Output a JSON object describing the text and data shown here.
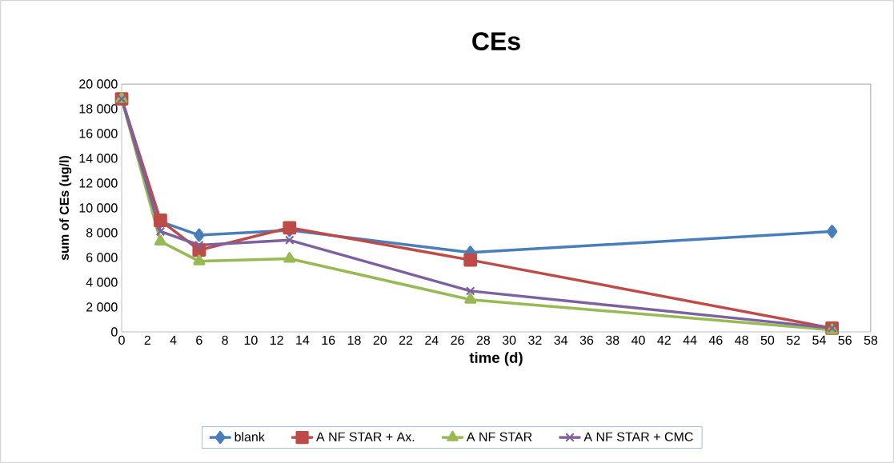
{
  "chart_data": {
    "type": "line",
    "title": "CEs",
    "xlabel": "time (d)",
    "ylabel": "sum of CEs (ug/l)",
    "x": [
      0,
      3,
      6,
      13,
      27,
      55
    ],
    "series": [
      {
        "name": "blank",
        "color": "#4a7ebb",
        "marker": "diamond",
        "values": [
          18800,
          8900,
          7800,
          8200,
          6400,
          8100
        ]
      },
      {
        "name": "A NF STAR + Ax.",
        "color": "#be4b48",
        "marker": "square",
        "values": [
          18800,
          9000,
          6600,
          8400,
          5800,
          300
        ]
      },
      {
        "name": "A NF STAR",
        "color": "#98b954",
        "marker": "triangle",
        "values": [
          18800,
          7300,
          5700,
          5900,
          2600,
          150
        ]
      },
      {
        "name": "A NF STAR + CMC",
        "color": "#7d60a0",
        "marker": "cross",
        "values": [
          18800,
          8100,
          7000,
          7400,
          3300,
          300
        ]
      }
    ],
    "xlim": [
      0,
      58
    ],
    "xticks": [
      0,
      2,
      4,
      6,
      8,
      10,
      12,
      14,
      16,
      18,
      20,
      22,
      24,
      26,
      28,
      30,
      32,
      34,
      36,
      38,
      40,
      42,
      44,
      46,
      48,
      50,
      52,
      54,
      56,
      58
    ],
    "ylim": [
      0,
      20000
    ],
    "yticks": [
      {
        "value": 0,
        "label": "0"
      },
      {
        "value": 2000,
        "label": "2 000"
      },
      {
        "value": 4000,
        "label": "4 000"
      },
      {
        "value": 6000,
        "label": "6 000"
      },
      {
        "value": 8000,
        "label": "8 000"
      },
      {
        "value": 10000,
        "label": "10 000"
      },
      {
        "value": 12000,
        "label": "12 000"
      },
      {
        "value": 14000,
        "label": "14 000"
      },
      {
        "value": 16000,
        "label": "16 000"
      },
      {
        "value": 18000,
        "label": "18 000"
      },
      {
        "value": 20000,
        "label": "20 000"
      }
    ],
    "grid": false,
    "legend": "bottom",
    "line_style": "solid"
  }
}
